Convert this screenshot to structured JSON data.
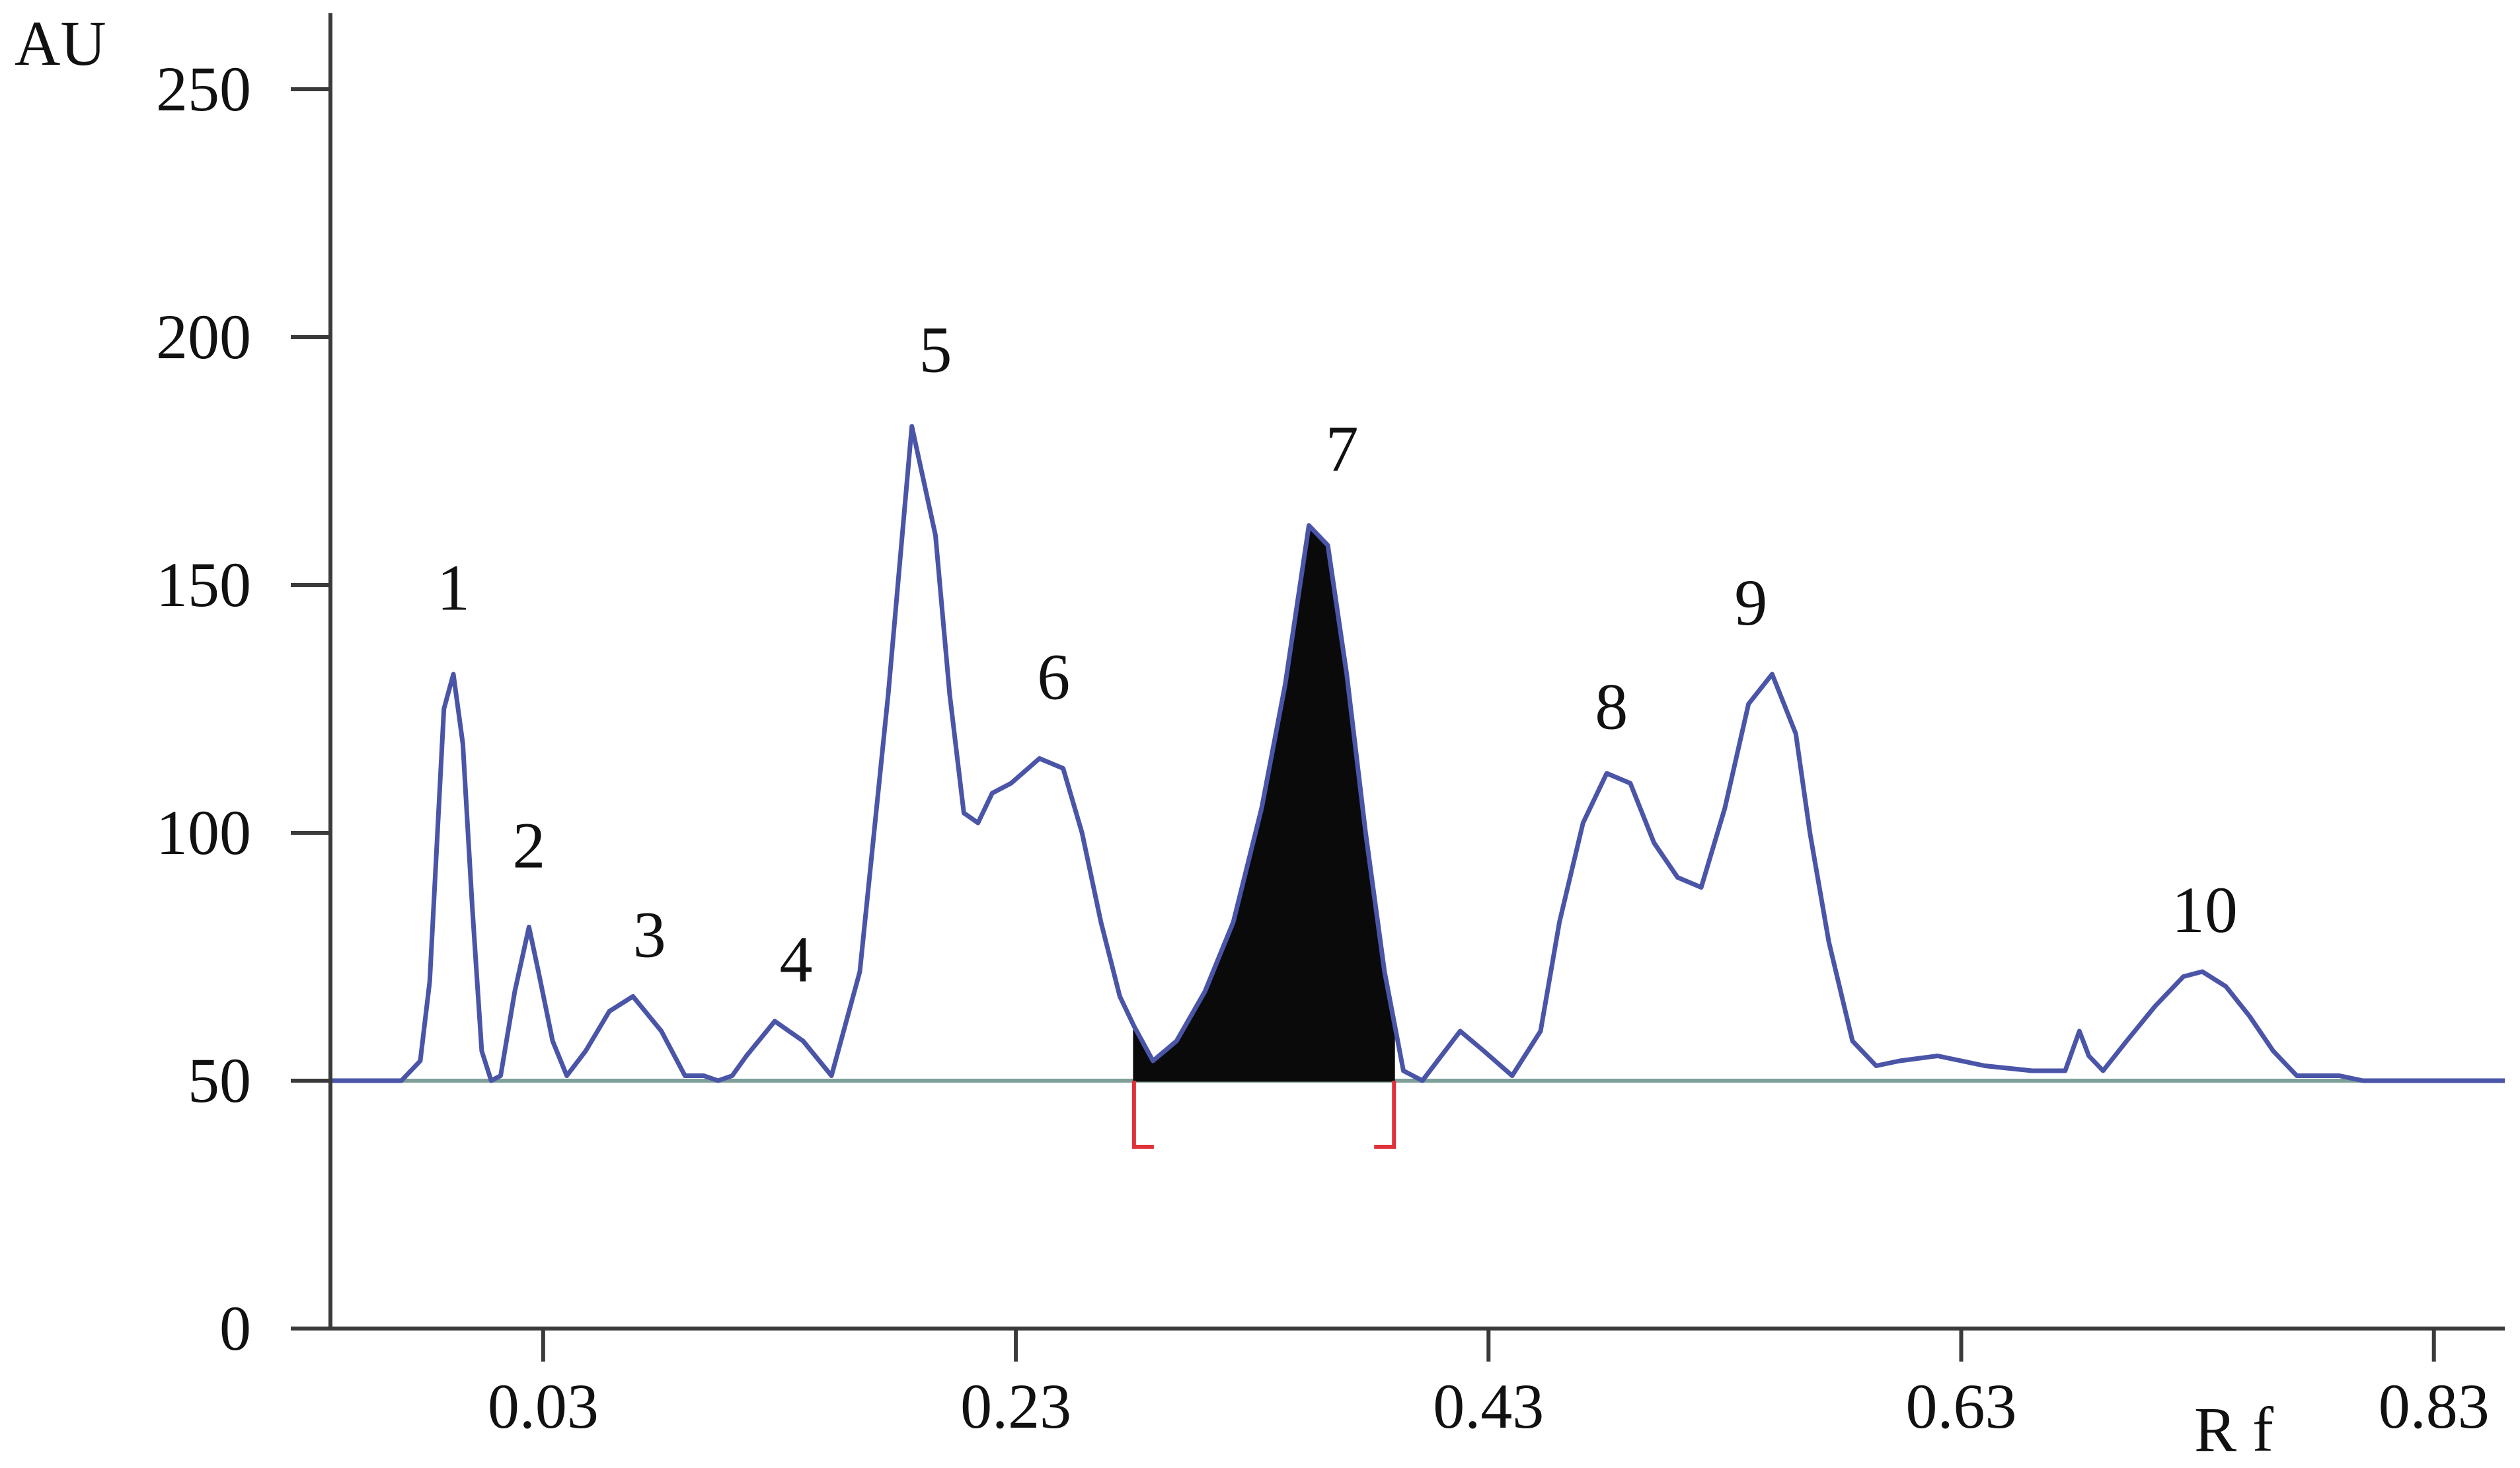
{
  "chart_data": {
    "type": "line",
    "ylabel": "AU",
    "xlabel": "R f",
    "ylim": [
      0,
      250
    ],
    "xlim": [
      -0.06,
      0.86
    ],
    "yticks": [
      0,
      50,
      100,
      150,
      200,
      250
    ],
    "ytick_labels": [
      "0",
      "50",
      "100",
      "150",
      "200",
      "250"
    ],
    "xticks": [
      0.03,
      0.23,
      0.43,
      0.63,
      0.83
    ],
    "xtick_labels": [
      "0.03",
      "0.23",
      "0.43",
      "0.63",
      "0.83"
    ],
    "baseline": 50,
    "series": [
      {
        "x": [
          -0.06,
          -0.03,
          -0.022,
          -0.018,
          -0.012,
          -0.008,
          -0.004,
          0.0,
          0.004,
          0.008,
          0.012,
          0.018,
          0.024,
          0.028,
          0.034,
          0.04,
          0.048,
          0.058,
          0.068,
          0.08,
          0.09,
          0.098,
          0.104,
          0.11,
          0.116,
          0.128,
          0.14,
          0.152,
          0.164,
          0.176,
          0.186,
          0.196,
          0.202,
          0.208,
          0.214,
          0.22,
          0.228,
          0.24,
          0.25,
          0.258,
          0.266,
          0.274,
          0.28,
          0.288,
          0.298,
          0.31,
          0.322,
          0.334,
          0.344,
          0.354,
          0.362,
          0.37,
          0.378,
          0.386,
          0.394,
          0.402,
          0.41,
          0.418,
          0.428,
          0.44,
          0.452,
          0.46,
          0.47,
          0.48,
          0.49,
          0.5,
          0.51,
          0.52,
          0.53,
          0.54,
          0.55,
          0.56,
          0.566,
          0.574,
          0.584,
          0.594,
          0.604,
          0.62,
          0.64,
          0.66,
          0.674,
          0.68,
          0.684,
          0.69,
          0.7,
          0.712,
          0.724,
          0.732,
          0.742,
          0.752,
          0.762,
          0.772,
          0.78,
          0.79,
          0.8,
          0.81,
          0.82,
          0.84,
          0.86
        ],
        "y": [
          50,
          50,
          54,
          70,
          125,
          132,
          118,
          85,
          56,
          50,
          51,
          68,
          81,
          72,
          58,
          51,
          56,
          64,
          67,
          60,
          51,
          51,
          50,
          51,
          55,
          62,
          58,
          51,
          72,
          128,
          182,
          160,
          128,
          104,
          102,
          108,
          110,
          115,
          113,
          100,
          82,
          67,
          61,
          54,
          58,
          68,
          82,
          105,
          130,
          162,
          158,
          132,
          100,
          72,
          52,
          50,
          55,
          60,
          56,
          51,
          60,
          82,
          102,
          112,
          110,
          98,
          91,
          89,
          105,
          126,
          132,
          120,
          100,
          78,
          58,
          53,
          54,
          55,
          53,
          52,
          52,
          60,
          55,
          52,
          58,
          65,
          71,
          72,
          69,
          63,
          56,
          51,
          51,
          51,
          50,
          50,
          50,
          50,
          50
        ]
      }
    ],
    "shaded_peak": {
      "x_start": 0.28,
      "x_end": 0.39
    },
    "peak_labels": [
      {
        "label": "1",
        "x": -0.008,
        "y": 145
      },
      {
        "label": "2",
        "x": 0.024,
        "y": 93
      },
      {
        "label": "3",
        "x": 0.075,
        "y": 75
      },
      {
        "label": "4",
        "x": 0.137,
        "y": 70
      },
      {
        "label": "5",
        "x": 0.196,
        "y": 193
      },
      {
        "label": "6",
        "x": 0.246,
        "y": 127
      },
      {
        "label": "7",
        "x": 0.368,
        "y": 173
      },
      {
        "label": "8",
        "x": 0.482,
        "y": 121
      },
      {
        "label": "9",
        "x": 0.541,
        "y": 142
      },
      {
        "label": "10",
        "x": 0.733,
        "y": 80
      }
    ]
  }
}
